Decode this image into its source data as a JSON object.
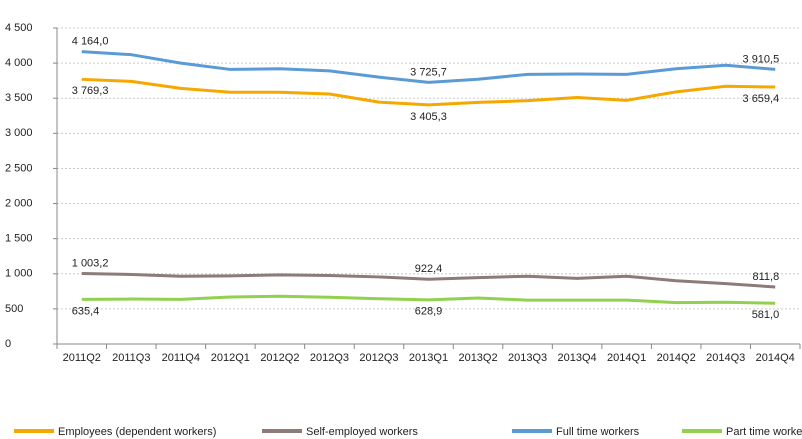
{
  "chart_data": {
    "type": "line",
    "categories": [
      "2011Q2",
      "2011Q3",
      "2011Q4",
      "2012Q1",
      "2012Q2",
      "2012Q3",
      "2012Q3",
      "2013Q1",
      "2013Q2",
      "2013Q3",
      "2013Q4",
      "2014Q1",
      "2014Q2",
      "2014Q3",
      "2014Q4"
    ],
    "series": [
      {
        "name": "Employees (dependent workers)",
        "color": "#f5a800",
        "values": [
          3769.3,
          3740,
          3640,
          3585,
          3585,
          3560,
          3445,
          3405.3,
          3440,
          3465,
          3510,
          3470,
          3590,
          3670,
          3659.4
        ],
        "value_labels": [
          "3 769,3",
          null,
          null,
          null,
          null,
          null,
          null,
          "3 405,3",
          null,
          null,
          null,
          null,
          null,
          null,
          "3 659,4"
        ]
      },
      {
        "name": "Self-employed workers",
        "color": "#8c7b78",
        "values": [
          1003.2,
          990,
          965,
          970,
          985,
          975,
          955,
          922.4,
          945,
          965,
          935,
          965,
          900,
          860,
          811.8
        ],
        "value_labels": [
          "1 003,2",
          null,
          null,
          null,
          null,
          null,
          null,
          "922,4",
          null,
          null,
          null,
          null,
          null,
          null,
          "811,8"
        ]
      },
      {
        "name": "Full time workers",
        "color": "#5b9bd5",
        "values": [
          4164.0,
          4120,
          4000,
          3910,
          3920,
          3890,
          3800,
          3725.7,
          3770,
          3840,
          3845,
          3840,
          3920,
          3970,
          3910.5
        ],
        "value_labels": [
          "4 164,0",
          null,
          null,
          null,
          null,
          null,
          null,
          "3 725,7",
          null,
          null,
          null,
          null,
          null,
          null,
          "3 910,5"
        ]
      },
      {
        "name": "Part time workers",
        "color": "#92d050",
        "values": [
          635.4,
          640,
          635,
          670,
          680,
          665,
          645,
          628.9,
          655,
          625,
          625,
          625,
          590,
          595,
          581.0
        ],
        "value_labels": [
          "635,4",
          null,
          null,
          null,
          null,
          null,
          null,
          "628,9",
          null,
          null,
          null,
          null,
          null,
          null,
          "581,0"
        ]
      }
    ],
    "ylim": [
      0,
      4500
    ],
    "yticks": [
      0,
      500,
      {
        "value": 1000,
        "label": "1 000"
      },
      {
        "value": 1500,
        "label": "1 500"
      },
      {
        "value": 2000,
        "label": "2 000"
      },
      {
        "value": 2500,
        "label": "2 500"
      },
      {
        "value": 3000,
        "label": "3 000"
      },
      {
        "value": 3500,
        "label": "3 500"
      },
      {
        "value": 4000,
        "label": "4 000"
      },
      {
        "value": 4500,
        "label": "4 500"
      }
    ],
    "grid": true,
    "legend": "bottom"
  }
}
